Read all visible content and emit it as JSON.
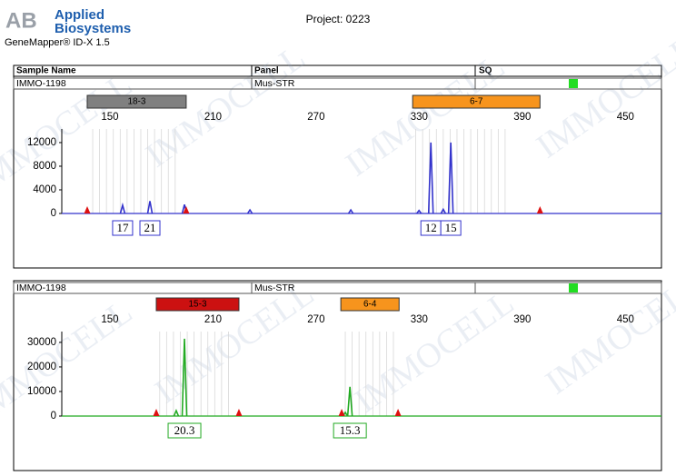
{
  "header": {
    "brand": [
      "Applied",
      "Biosystems"
    ],
    "logo": "AB",
    "software": "GeneMapper® ID-X  1.5",
    "project": "Project: 0223",
    "watermark": "IMMOCELL"
  },
  "table_header": [
    "Sample Name",
    "Panel",
    "SQ"
  ],
  "chart_data": [
    {
      "type": "electropherogram",
      "sample": "IMMO-1198",
      "panel": "Mus-STR",
      "color": "#3333cc",
      "markers": [
        {
          "name": "18-3",
          "start": 136.8,
          "end": 194.4,
          "color": "#808080"
        },
        {
          "name": "6-7",
          "start": 326.2,
          "end": 400.3,
          "color": "#f7941d"
        }
      ],
      "xlim": [
        122,
        471
      ],
      "xticks": [
        150,
        210,
        270,
        330,
        390,
        450
      ],
      "ylim": [
        0,
        14300
      ],
      "yticks": [
        0,
        4000,
        8000,
        12000
      ],
      "peaks": {
        "x": [
          157.4,
          173.3,
          193.4,
          231.5,
          290.2,
          329.9,
          336.8,
          344.0,
          348.4
        ],
        "values": [
          1400,
          2100,
          1500,
          600,
          600,
          500,
          12000,
          700,
          12000
        ]
      },
      "alleles": [
        {
          "label": "17",
          "x": 157.4
        },
        {
          "label": "21",
          "x": 173.3
        },
        {
          "label": "12",
          "x": 336.8
        },
        {
          "label": "15",
          "x": 348.4
        }
      ],
      "size_standard": [
        136.8,
        194.4,
        400.3
      ],
      "bins": [
        140,
        144,
        148,
        152,
        156,
        160,
        164,
        168,
        172,
        176,
        180,
        184,
        188,
        328,
        332,
        336,
        340,
        344,
        348,
        352,
        356,
        360,
        364,
        368,
        372,
        376,
        380
      ]
    },
    {
      "type": "electropherogram",
      "sample": "IMMO-1198",
      "panel": "Mus-STR",
      "color": "#22aa22",
      "markers": [
        {
          "name": "15-3",
          "start": 177.0,
          "end": 225.1,
          "color": "#cc1111"
        },
        {
          "name": "6-4",
          "start": 284.4,
          "end": 318.3,
          "color": "#f7941d"
        }
      ],
      "xlim": [
        122,
        471
      ],
      "xticks": [
        150,
        210,
        270,
        330,
        390,
        450
      ],
      "ylim": [
        0,
        34400
      ],
      "yticks": [
        0,
        10000,
        20000,
        30000
      ],
      "peaks": {
        "x": [
          188.6,
          193.4,
          287.0,
          289.7
        ],
        "values": [
          2200,
          31500,
          1500,
          11900
        ]
      },
      "alleles": [
        {
          "label": "20.3",
          "x": 193.4
        },
        {
          "label": "15.3",
          "x": 289.7
        }
      ],
      "size_standard": [
        177.0,
        225.1,
        284.9,
        317.7
      ],
      "bins": [
        179,
        183,
        187,
        191,
        195,
        199,
        203,
        207,
        211,
        215,
        219,
        287,
        291,
        295,
        299,
        303,
        307,
        311,
        315
      ]
    }
  ]
}
